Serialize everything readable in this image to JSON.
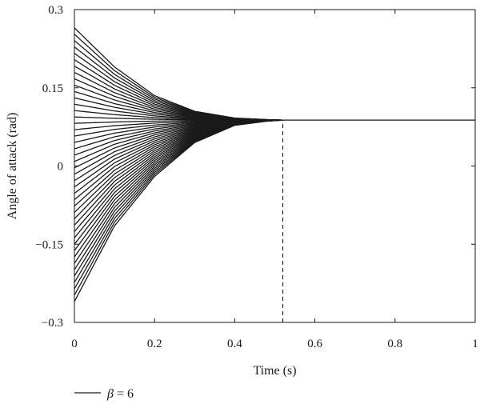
{
  "chart_data": {
    "type": "line",
    "title": "",
    "xlabel": "Time (s)",
    "ylabel": "Angle of attack (rad)",
    "xlim": [
      0,
      1
    ],
    "ylim": [
      -0.3,
      0.3
    ],
    "x_ticks": [
      0,
      0.2,
      0.4,
      0.6,
      0.8,
      1
    ],
    "y_ticks": [
      -0.3,
      -0.15,
      0,
      0.15,
      0.3
    ],
    "x_tick_labels": [
      "0",
      "0.2",
      "0.4",
      "0.6",
      "0.8",
      "1"
    ],
    "y_tick_labels": [
      "−0.3",
      "−0.15",
      "0",
      "0.15",
      "0.3"
    ],
    "grid": false,
    "legend_position": "bottom-left",
    "series": [
      {
        "name": "β = 6",
        "color": "#1a1a1a",
        "initial_range": [
          -0.26,
          0.265
        ],
        "steady_state_value": 0.088,
        "settling_time": 0.52,
        "envelope_upper": [
          [
            0,
            0.265
          ],
          [
            0.1,
            0.19
          ],
          [
            0.2,
            0.135
          ],
          [
            0.3,
            0.105
          ],
          [
            0.4,
            0.092
          ],
          [
            0.48,
            0.089
          ],
          [
            0.52,
            0.088
          ],
          [
            1,
            0.088
          ]
        ],
        "envelope_lower": [
          [
            0,
            -0.26
          ],
          [
            0.1,
            -0.115
          ],
          [
            0.2,
            -0.02
          ],
          [
            0.3,
            0.045
          ],
          [
            0.4,
            0.078
          ],
          [
            0.48,
            0.086
          ],
          [
            0.52,
            0.088
          ],
          [
            1,
            0.088
          ]
        ]
      }
    ],
    "annotations": [
      {
        "type": "vertical-dashed-line",
        "x": 0.52,
        "y_from": -0.3,
        "y_to": 0.088
      }
    ],
    "legend": {
      "symbol": "β",
      "text": " = 6"
    }
  }
}
